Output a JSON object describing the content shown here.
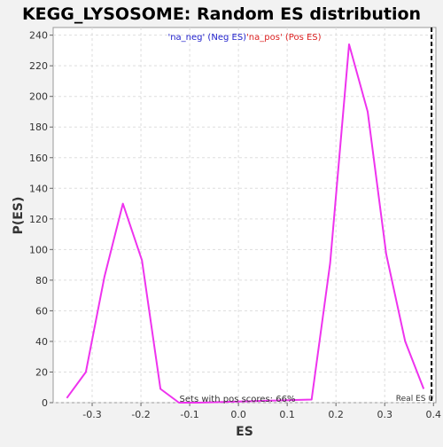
{
  "chart_data": {
    "type": "line",
    "title": "KEGG_LYSOSOME: Random ES distribution",
    "xlabel": "ES",
    "ylabel": "P(ES)",
    "xlim": [
      -0.38,
      0.405
    ],
    "ylim": [
      0,
      245
    ],
    "x_ticks": [
      -0.3,
      -0.2,
      -0.1,
      0.0,
      0.1,
      0.2,
      0.3,
      0.4
    ],
    "x_tick_labels": [
      "-0.3",
      "-0.2",
      "-0.1",
      "0.0",
      "0.1",
      "0.2",
      "0.3",
      "0.4"
    ],
    "y_ticks": [
      0,
      20,
      40,
      60,
      80,
      100,
      120,
      140,
      160,
      180,
      200,
      220,
      240
    ],
    "y_tick_labels": [
      "0",
      "20",
      "40",
      "60",
      "80",
      "100",
      "120",
      "140",
      "160",
      "180",
      "200",
      "220",
      "240"
    ],
    "grid": true,
    "legend": {
      "placement": "top-center",
      "neg_label": "'na_neg' (Neg ES)",
      "pos_label": "'na_pos' (Pos ES)",
      "neg_color": "#2222cc",
      "pos_color": "#dd2222"
    },
    "series": [
      {
        "color": "#ee33ee",
        "x": [
          -0.352,
          -0.313,
          -0.275,
          -0.237,
          -0.198,
          -0.16,
          -0.122,
          -0.083,
          0.15,
          0.188,
          0.227,
          0.265,
          0.303,
          0.342,
          0.38
        ],
        "y": [
          3,
          20,
          82,
          130,
          93,
          9,
          0,
          0,
          2,
          91,
          234,
          190,
          97,
          40,
          9
        ]
      }
    ],
    "real_es": {
      "x": 0.396,
      "label": "Real ES 0"
    },
    "annotation": "Sets with pos scores: 66%"
  }
}
